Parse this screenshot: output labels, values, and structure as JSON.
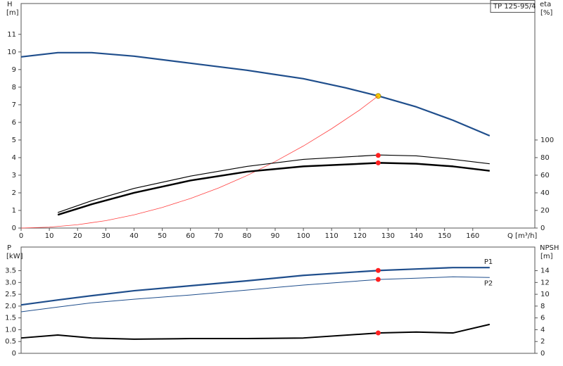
{
  "chart_data": [
    {
      "type": "line",
      "title": "TP 125-95/4",
      "ylabel": "H",
      "yunit": "[m]",
      "y2label": "eta",
      "y2unit": "[%]",
      "xlabel": "Q [m³/h]",
      "xlim": [
        0,
        182
      ],
      "xticks": [
        0,
        10,
        20,
        30,
        40,
        50,
        60,
        70,
        80,
        90,
        100,
        110,
        120,
        130,
        140,
        150,
        160
      ],
      "ylim": [
        0,
        12.75
      ],
      "yticks": [
        0,
        1,
        2,
        3,
        4,
        5,
        6,
        7,
        8,
        9,
        10,
        11
      ],
      "y2lim": [
        0,
        255
      ],
      "y2ticks": [
        0,
        20,
        40,
        60,
        80,
        100
      ],
      "point_x": 126.5,
      "series": [
        {
          "color": "#1f4e8c",
          "width": 2.2,
          "axis": "y",
          "x": [
            0,
            13,
            25,
            40,
            60,
            80,
            100,
            115,
            127,
            140,
            153,
            166
          ],
          "values": [
            9.72,
            9.96,
            9.96,
            9.76,
            9.36,
            8.96,
            8.48,
            7.96,
            7.48,
            6.88,
            6.12,
            5.24
          ],
          "point": 7.5,
          "point_color": "#f5d000"
        },
        {
          "color": "#ff4040",
          "width": 0.8,
          "axis": "y",
          "x": [
            0,
            10,
            20,
            30,
            40,
            50,
            60,
            70,
            80,
            90,
            100,
            110,
            120,
            126.5
          ],
          "values": [
            0,
            0.05,
            0.19,
            0.42,
            0.75,
            1.17,
            1.68,
            2.28,
            2.98,
            3.78,
            4.66,
            5.64,
            6.71,
            7.5
          ]
        },
        {
          "color": "#000000",
          "width": 1.2,
          "axis": "y2",
          "x": [
            13,
            25,
            40,
            60,
            80,
            100,
            127,
            140,
            153,
            166
          ],
          "values": [
            17.6,
            31,
            45,
            59,
            70,
            78,
            83,
            82,
            78,
            73
          ],
          "point": 82.5,
          "point_color": "#ff2020"
        },
        {
          "color": "#000000",
          "width": 2.5,
          "axis": "y2",
          "x": [
            13,
            25,
            40,
            60,
            80,
            100,
            127,
            140,
            153,
            166
          ],
          "values": [
            15,
            27,
            40,
            54,
            64,
            70,
            74,
            73,
            70,
            65
          ],
          "point": 74,
          "point_color": "#ff2020"
        }
      ]
    },
    {
      "type": "line",
      "ylabel": "P",
      "yunit": "[kW]",
      "y2label": "NPSH",
      "y2unit": "[m]",
      "xlim": [
        0,
        182
      ],
      "ylim": [
        0,
        4.5
      ],
      "yticks": [
        0,
        0.5,
        {
          "value": 1,
          "label": "1.0"
        },
        1.5,
        {
          "value": 2,
          "label": "2.0"
        },
        2.5,
        {
          "value": 3,
          "label": "3.0"
        },
        3.5
      ],
      "y2lim": [
        0,
        18
      ],
      "y2ticks": [
        0,
        2,
        4,
        6,
        8,
        10,
        12,
        14
      ],
      "point_x": 126.5,
      "series": [
        {
          "name": "P1",
          "color": "#1f4e8c",
          "width": 2.2,
          "axis": "y",
          "x": [
            0,
            13,
            25,
            40,
            60,
            80,
            100,
            127,
            140,
            153,
            166
          ],
          "values": [
            2.05,
            2.26,
            2.44,
            2.65,
            2.86,
            3.07,
            3.3,
            3.51,
            3.57,
            3.63,
            3.63
          ],
          "point": 3.51,
          "point_color": "#ff2020"
        },
        {
          "name": "P2",
          "color": "#1f4e8c",
          "width": 1,
          "axis": "y",
          "x": [
            0,
            13,
            25,
            40,
            60,
            80,
            100,
            127,
            140,
            153,
            166
          ],
          "values": [
            1.76,
            1.96,
            2.14,
            2.29,
            2.47,
            2.68,
            2.89,
            3.13,
            3.18,
            3.24,
            3.21
          ],
          "point": 3.13,
          "point_color": "#ff2020"
        },
        {
          "color": "#000000",
          "width": 2,
          "axis": "y2",
          "x": [
            0,
            13,
            25,
            40,
            60,
            80,
            100,
            127,
            140,
            153,
            166
          ],
          "values": [
            2.6,
            3.1,
            2.6,
            2.4,
            2.5,
            2.5,
            2.6,
            3.45,
            3.6,
            3.45,
            4.9
          ],
          "point": 3.45,
          "point_color": "#ff2020"
        }
      ]
    }
  ]
}
